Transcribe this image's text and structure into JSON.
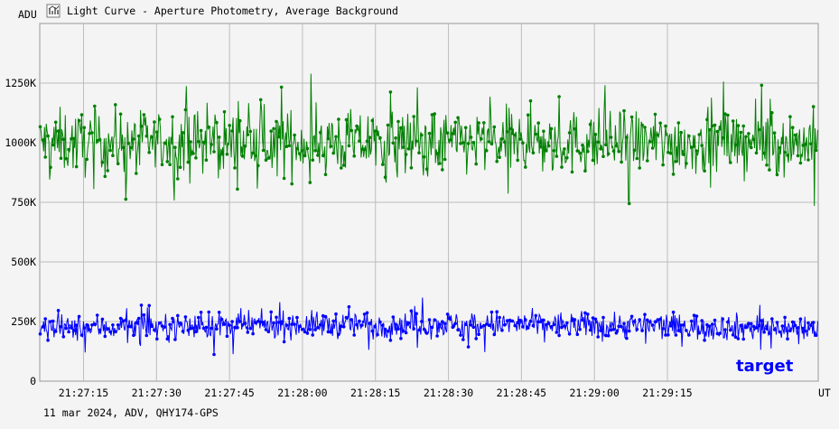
{
  "window": {
    "title": "Light Curve - Aperture Photometry, Average Background",
    "icon": "light-curve-chart-icon"
  },
  "footer": {
    "info": "11 mar 2024, ADV, QHY174-GPS"
  },
  "chart_data": {
    "type": "line",
    "ylabel": "ADU",
    "xunit": "UT",
    "x_start": "21:27:06",
    "x_end": "21:29:46",
    "x_ticks": [
      "21:27:15",
      "21:27:30",
      "21:27:45",
      "21:28:00",
      "21:28:15",
      "21:28:30",
      "21:28:45",
      "21:29:00",
      "21:29:15"
    ],
    "ylim": [
      0,
      1500000
    ],
    "y_ticks": [
      0,
      250000,
      500000,
      750000,
      1000000,
      1250000
    ],
    "y_tick_labels": [
      "0",
      "250K",
      "500K",
      "750K",
      "1000K",
      "1250K"
    ],
    "grid": true,
    "series": [
      {
        "name": "",
        "color": "#008000",
        "mean": 1000000,
        "spread": 110000,
        "min": 735000,
        "max": 1330000
      },
      {
        "name": "target",
        "color": "#0000ff",
        "mean": 220000,
        "spread": 45000,
        "min": 80000,
        "max": 375000
      }
    ],
    "annotations": [
      {
        "text": "target",
        "color": "#0000ff"
      }
    ]
  }
}
